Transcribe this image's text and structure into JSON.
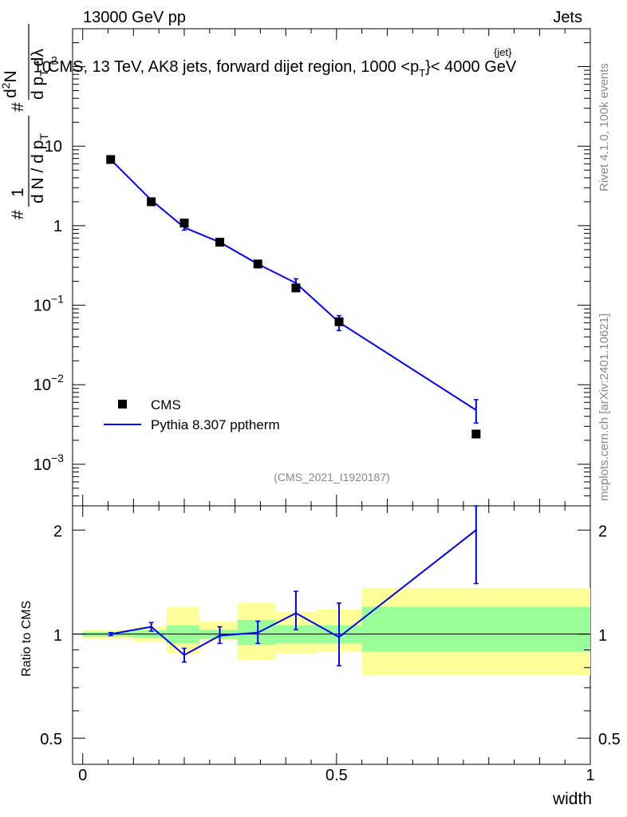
{
  "header": {
    "left": "13000 GeV pp",
    "right": "Jets"
  },
  "main_title": "CMS, 13 TeV, AK8 jets, forward dijet region, 1000 <p",
  "main_title_sup": "{jet}",
  "main_title_sub": "T",
  "main_title_end": "}< 4000 GeV",
  "side_labels": {
    "rivet": "Rivet 4.1.0,  100k events",
    "mcplots": "mcplots.cern.ch [arXiv:2401.10621]"
  },
  "analysis_id": "(CMS_2021_I1920187)",
  "y_label_top": {
    "hash1": "#",
    "one": "1",
    "dN_dpt": "d N / d p",
    "T_sub": "T",
    "hash2": "#",
    "d2N": "d",
    "two": "2",
    "N": "N",
    "dpt_dlambda": "d p",
    "T_sub2": "T",
    "dl": "dλ"
  },
  "y_label_bottom": "Ratio to CMS",
  "x_label": "width",
  "legend": [
    {
      "label": "CMS",
      "marker": "square",
      "color": "#000000"
    },
    {
      "label": "Pythia 8.307 pptherm",
      "marker": "line",
      "color": "#0000ff"
    }
  ],
  "colors": {
    "mc": "#0000ff",
    "data": "#000000",
    "band_inner": "#99ff99",
    "band_outer": "#ffff99",
    "label_gray": "#888888"
  },
  "chart_data": {
    "type": "line",
    "top_panel": {
      "yscale": "log",
      "ylim": [
        0.0003,
        300
      ],
      "xlim": [
        -0.02,
        1.0
      ],
      "y_ticks": [
        {
          "value": 100,
          "label": "10",
          "exp": "2"
        },
        {
          "value": 10,
          "label": "10",
          "exp": ""
        },
        {
          "value": 1,
          "label": "1",
          "exp": ""
        },
        {
          "value": 0.1,
          "label": "10",
          "exp": "−1"
        },
        {
          "value": 0.01,
          "label": "10",
          "exp": "−2"
        },
        {
          "value": 0.001,
          "label": "10",
          "exp": "−3"
        }
      ],
      "series": [
        {
          "name": "CMS",
          "x": [
            0.055,
            0.135,
            0.2,
            0.27,
            0.345,
            0.42,
            0.505,
            0.775
          ],
          "y": [
            6.8,
            2.0,
            1.08,
            0.62,
            0.33,
            0.165,
            0.062,
            0.0024
          ]
        },
        {
          "name": "Pythia 8.307 pptherm",
          "x": [
            0.055,
            0.135,
            0.2,
            0.27,
            0.345,
            0.42,
            0.505,
            0.775
          ],
          "y": [
            6.8,
            2.1,
            0.95,
            0.62,
            0.33,
            0.19,
            0.061,
            0.0048
          ],
          "yerr_low": [
            6.6,
            2.0,
            0.88,
            0.6,
            0.31,
            0.165,
            0.048,
            0.0033
          ],
          "yerr_high": [
            7.0,
            2.2,
            1.02,
            0.64,
            0.35,
            0.215,
            0.074,
            0.0065
          ]
        }
      ]
    },
    "ratio_panel": {
      "ylabel": "Ratio to CMS",
      "yscale": "log",
      "ylim": [
        0.42,
        2.35
      ],
      "xlim": [
        -0.02,
        1.0
      ],
      "y_ticks": [
        {
          "value": 0.5,
          "label": "0.5"
        },
        {
          "value": 1,
          "label": "1"
        },
        {
          "value": 2,
          "label": "2"
        }
      ],
      "x_ticks": [
        {
          "value": 0,
          "label": "0"
        },
        {
          "value": 0.5,
          "label": "0.5"
        },
        {
          "value": 1,
          "label": "1"
        }
      ],
      "bins": [
        {
          "lo": 0.0,
          "hi": 0.1,
          "inner": [
            0.985,
            1.015
          ],
          "outer": [
            0.97,
            1.03
          ]
        },
        {
          "lo": 0.1,
          "hi": 0.165,
          "inner": [
            0.975,
            1.025
          ],
          "outer": [
            0.95,
            1.05
          ]
        },
        {
          "lo": 0.165,
          "hi": 0.23,
          "inner": [
            0.94,
            1.06
          ],
          "outer": [
            0.88,
            1.2
          ]
        },
        {
          "lo": 0.23,
          "hi": 0.305,
          "inner": [
            0.97,
            1.03
          ],
          "outer": [
            0.96,
            1.09
          ]
        },
        {
          "lo": 0.305,
          "hi": 0.38,
          "inner": [
            0.93,
            1.1
          ],
          "outer": [
            0.84,
            1.23
          ]
        },
        {
          "lo": 0.38,
          "hi": 0.46,
          "inner": [
            0.94,
            1.06
          ],
          "outer": [
            0.88,
            1.16
          ]
        },
        {
          "lo": 0.46,
          "hi": 0.55,
          "inner": [
            0.94,
            1.06
          ],
          "outer": [
            0.89,
            1.18
          ]
        },
        {
          "lo": 0.55,
          "hi": 1.0,
          "inner": [
            0.89,
            1.2
          ],
          "outer": [
            0.76,
            1.36
          ]
        }
      ],
      "series": [
        {
          "name": "Pythia 8.307 pptherm",
          "x": [
            0.055,
            0.135,
            0.2,
            0.27,
            0.345,
            0.42,
            0.505,
            0.775
          ],
          "y": [
            1.0,
            1.05,
            0.87,
            0.99,
            1.01,
            1.15,
            0.98,
            2.0
          ],
          "yerr_low": [
            0.99,
            1.02,
            0.83,
            0.94,
            0.94,
            1.03,
            0.81,
            1.4
          ],
          "yerr_high": [
            1.01,
            1.08,
            0.91,
            1.05,
            1.09,
            1.33,
            1.23,
            2.35
          ]
        }
      ]
    }
  }
}
